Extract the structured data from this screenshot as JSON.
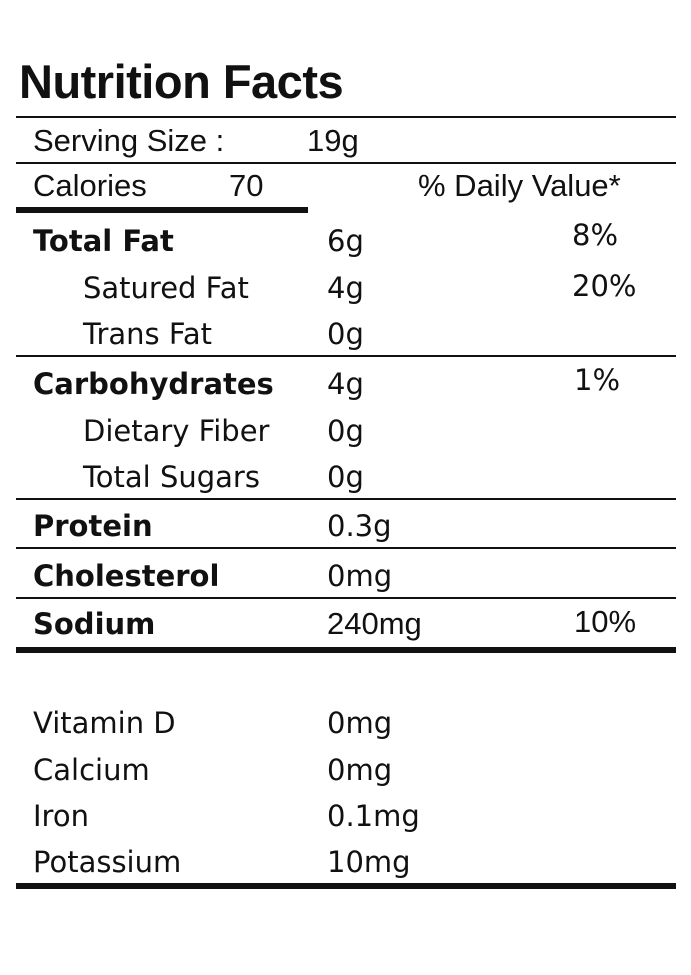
{
  "title": "Nutrition Facts",
  "serving": {
    "label": "Serving Size :",
    "value": "19g"
  },
  "calories": {
    "label": "Calories",
    "value": "70"
  },
  "daily_value_header": "% Daily Value*",
  "nutrients": [
    {
      "name": "Total Fat",
      "amount": "6g",
      "dv": "8%"
    },
    {
      "name": "Satured Fat",
      "amount": "4g",
      "dv": "20%"
    },
    {
      "name": "Trans Fat",
      "amount": "0g",
      "dv": ""
    },
    {
      "name": "Carbohydrates",
      "amount": "4g",
      "dv": "1%"
    },
    {
      "name": "Dietary Fiber",
      "amount": "0g",
      "dv": ""
    },
    {
      "name": "Total Sugars",
      "amount": "0g",
      "dv": ""
    },
    {
      "name": "Protein",
      "amount": "0.3g",
      "dv": ""
    },
    {
      "name": "Cholesterol",
      "amount": "0mg",
      "dv": ""
    },
    {
      "name": "Sodium",
      "amount": "240mg",
      "dv": "10%"
    }
  ],
  "vitamins": [
    {
      "name": "Vitamin D",
      "amount": "0mg"
    },
    {
      "name": "Calcium",
      "amount": "0mg"
    },
    {
      "name": "Iron",
      "amount": "0.1mg"
    },
    {
      "name": "Potassium",
      "amount": "10mg"
    }
  ]
}
